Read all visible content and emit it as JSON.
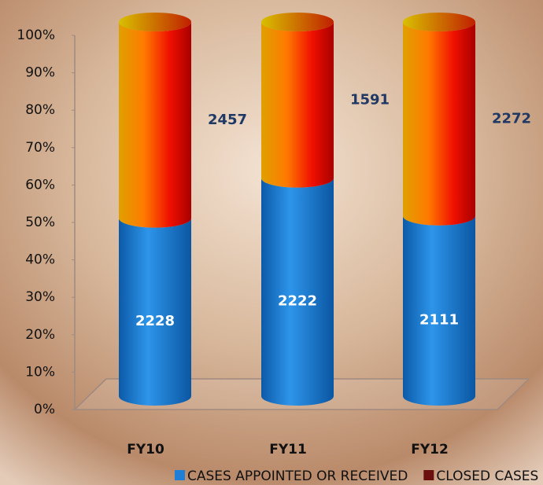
{
  "chart_data": {
    "type": "bar",
    "stacking": "percent",
    "categories": [
      "FY10",
      "FY11",
      "FY12"
    ],
    "series": [
      {
        "name": "CASES APPOINTED OR RECEIVED",
        "color": "#1f7fd6",
        "values": [
          2228,
          2222,
          2111
        ]
      },
      {
        "name": "CLOSED CASES",
        "color": "#6b0f0f",
        "values": [
          2457,
          1591,
          2272
        ]
      }
    ],
    "ylim": [
      0,
      100
    ],
    "yticks": [
      {
        "value": 0,
        "label": "0%"
      },
      {
        "value": 10,
        "label": "10%"
      },
      {
        "value": 20,
        "label": "20%"
      },
      {
        "value": 30,
        "label": "30%"
      },
      {
        "value": 40,
        "label": "40%"
      },
      {
        "value": 50,
        "label": "50%"
      },
      {
        "value": 60,
        "label": "60%"
      },
      {
        "value": 70,
        "label": "70%"
      },
      {
        "value": 80,
        "label": "80%"
      },
      {
        "value": 90,
        "label": "90%"
      },
      {
        "value": 100,
        "label": "100%"
      }
    ],
    "legend": "bottom"
  }
}
